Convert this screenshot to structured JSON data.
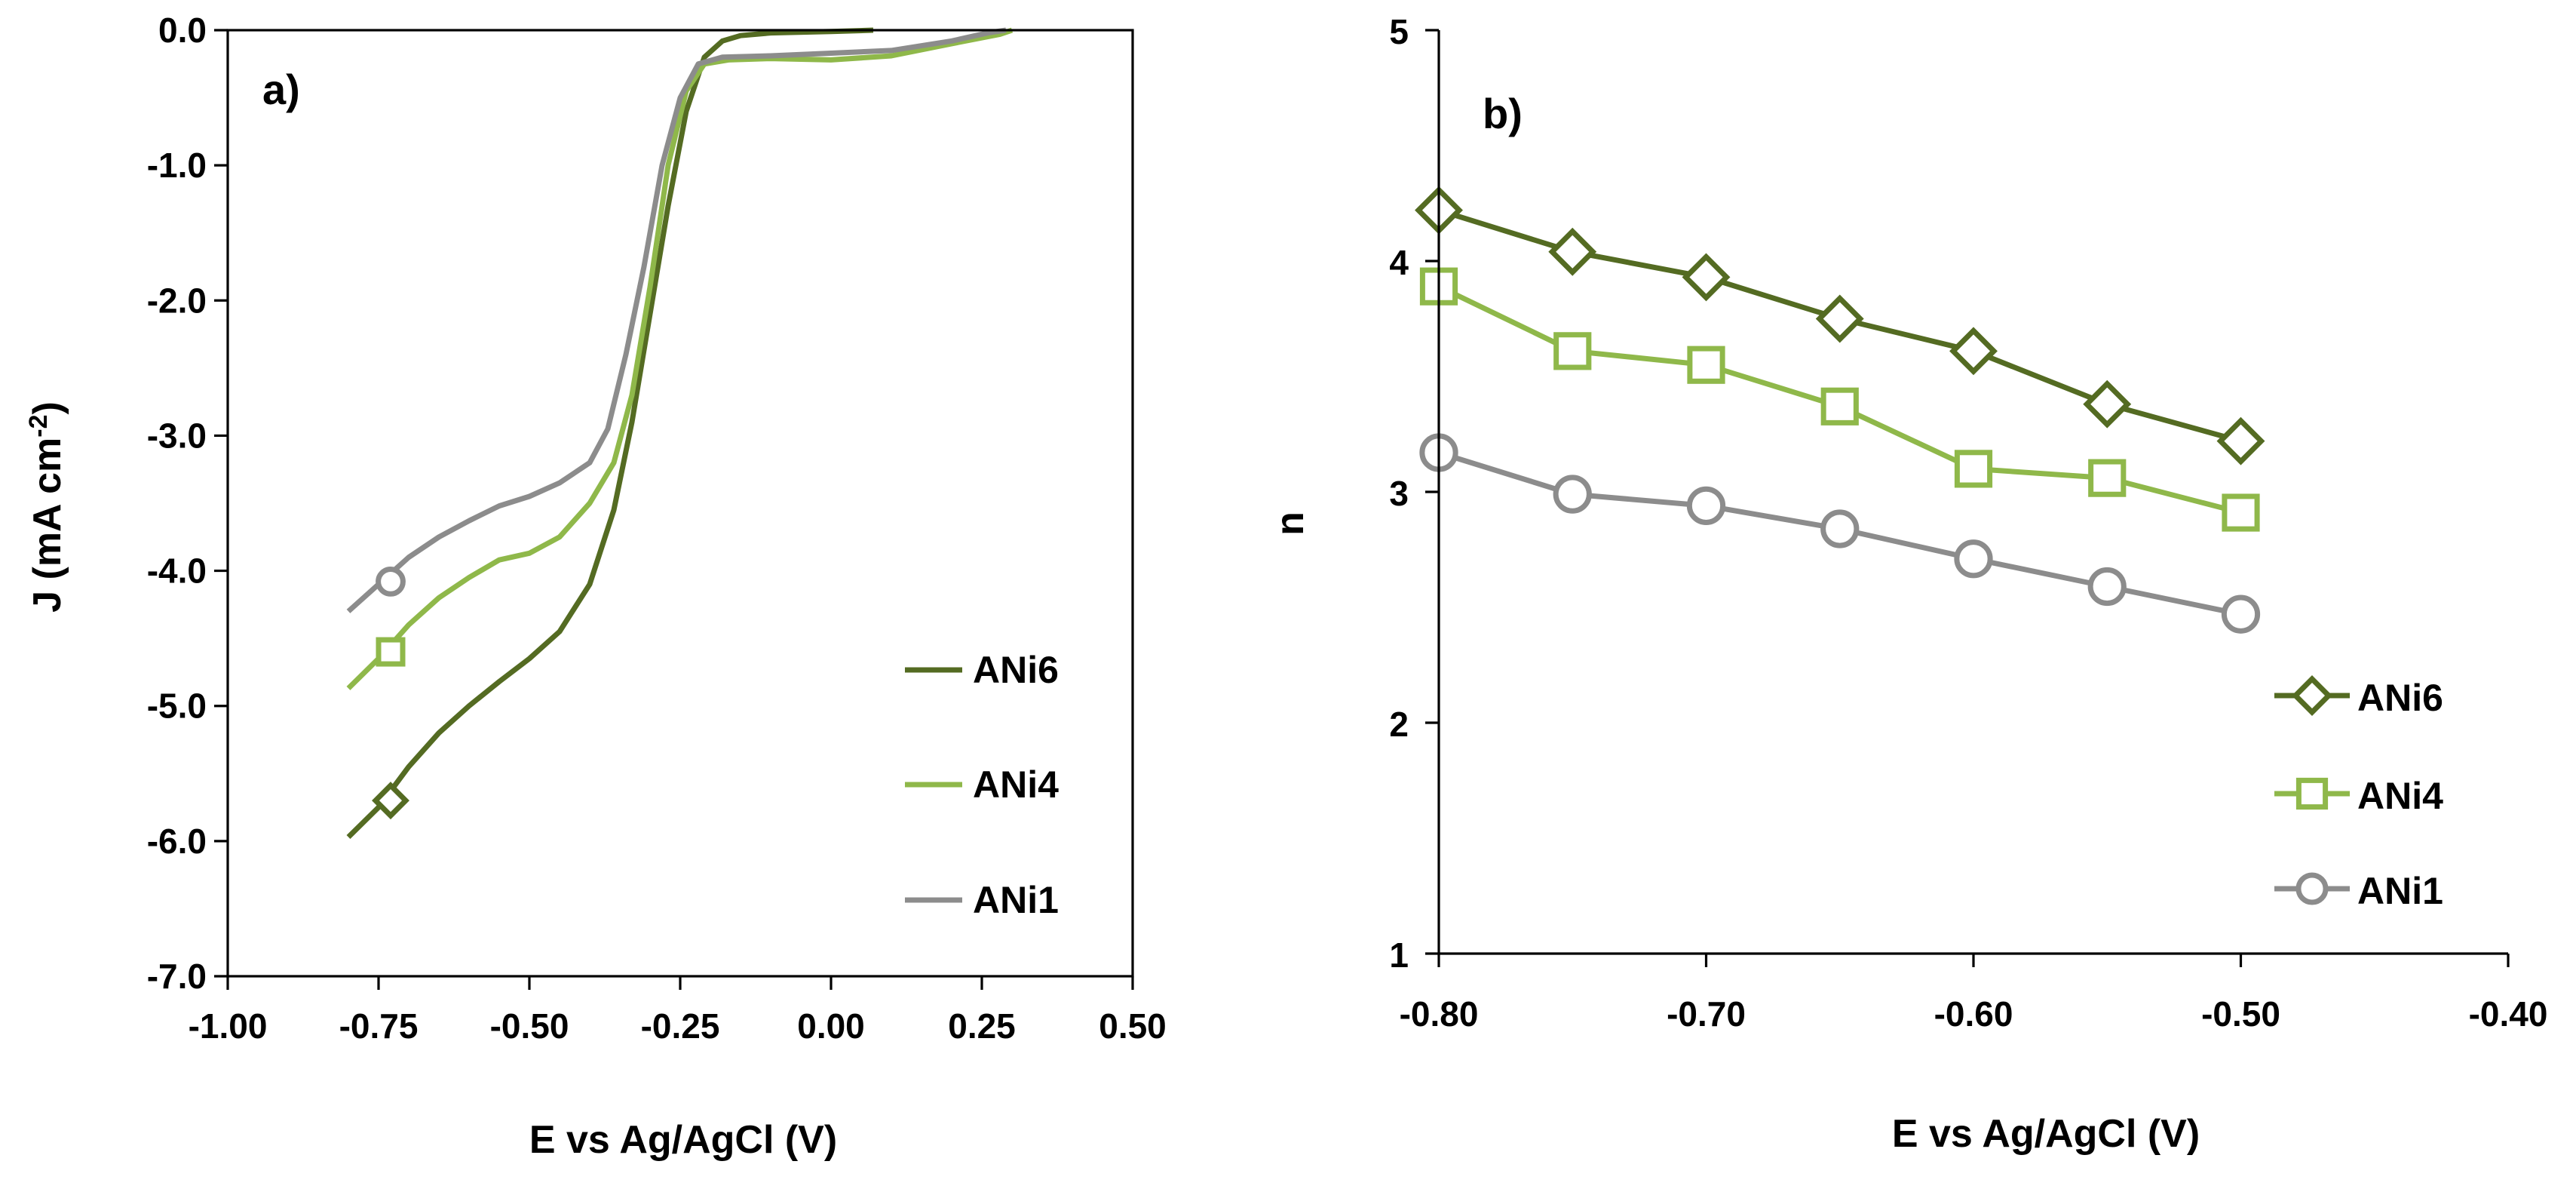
{
  "chart_data": [
    {
      "type": "line",
      "panel_label": "a)",
      "xlabel": "E vs Ag/AgCl (V)",
      "ylabel_main": "J (mA cm",
      "ylabel_sup": "-2",
      "ylabel_close": ")",
      "xlim": [
        -1.0,
        0.5
      ],
      "ylim": [
        -7.0,
        0.0
      ],
      "xticks": [
        -1.0,
        -0.75,
        -0.5,
        -0.25,
        0.0,
        0.25,
        0.5
      ],
      "xtick_labels": [
        "-1.00",
        "-0.75",
        "-0.50",
        "-0.25",
        "0.00",
        "0.25",
        "0.50"
      ],
      "yticks": [
        0,
        -1,
        -2,
        -3,
        -4,
        -5,
        -6,
        -7
      ],
      "ytick_labels": [
        "0.0",
        "-1.0",
        "-2.0",
        "-3.0",
        "-4.0",
        "-5.0",
        "-6.0",
        "-7.0"
      ],
      "legend_position": "right",
      "series": [
        {
          "name": "ANi6",
          "color": "#546b22",
          "marker": "diamond",
          "marker_at": [
            -0.73,
            -5.7
          ],
          "points": [
            [
              -0.8,
              -5.97
            ],
            [
              -0.75,
              -5.75
            ],
            [
              -0.7,
              -5.45
            ],
            [
              -0.65,
              -5.2
            ],
            [
              -0.6,
              -5.0
            ],
            [
              -0.55,
              -4.82
            ],
            [
              -0.5,
              -4.65
            ],
            [
              -0.45,
              -4.45
            ],
            [
              -0.4,
              -4.1
            ],
            [
              -0.36,
              -3.55
            ],
            [
              -0.33,
              -2.9
            ],
            [
              -0.3,
              -2.1
            ],
            [
              -0.27,
              -1.3
            ],
            [
              -0.24,
              -0.6
            ],
            [
              -0.21,
              -0.2
            ],
            [
              -0.18,
              -0.08
            ],
            [
              -0.15,
              -0.04
            ],
            [
              -0.1,
              -0.02
            ],
            [
              0.0,
              -0.01
            ],
            [
              0.07,
              0.0
            ]
          ]
        },
        {
          "name": "ANi4",
          "color": "#8fb84a",
          "marker": "square",
          "marker_at": [
            -0.73,
            -4.6
          ],
          "points": [
            [
              -0.8,
              -4.87
            ],
            [
              -0.75,
              -4.65
            ],
            [
              -0.7,
              -4.4
            ],
            [
              -0.65,
              -4.2
            ],
            [
              -0.6,
              -4.05
            ],
            [
              -0.55,
              -3.92
            ],
            [
              -0.5,
              -3.87
            ],
            [
              -0.45,
              -3.75
            ],
            [
              -0.4,
              -3.5
            ],
            [
              -0.36,
              -3.2
            ],
            [
              -0.33,
              -2.7
            ],
            [
              -0.3,
              -1.9
            ],
            [
              -0.27,
              -1.0
            ],
            [
              -0.24,
              -0.45
            ],
            [
              -0.21,
              -0.25
            ],
            [
              -0.17,
              -0.22
            ],
            [
              -0.1,
              -0.21
            ],
            [
              0.0,
              -0.22
            ],
            [
              0.1,
              -0.19
            ],
            [
              0.2,
              -0.1
            ],
            [
              0.28,
              -0.03
            ],
            [
              0.3,
              0.0
            ]
          ]
        },
        {
          "name": "ANi1",
          "color": "#8c8c8c",
          "marker": "circle",
          "marker_at": [
            -0.73,
            -4.08
          ],
          "points": [
            [
              -0.8,
              -4.3
            ],
            [
              -0.75,
              -4.1
            ],
            [
              -0.7,
              -3.9
            ],
            [
              -0.65,
              -3.75
            ],
            [
              -0.6,
              -3.63
            ],
            [
              -0.55,
              -3.52
            ],
            [
              -0.5,
              -3.45
            ],
            [
              -0.45,
              -3.35
            ],
            [
              -0.4,
              -3.2
            ],
            [
              -0.37,
              -2.95
            ],
            [
              -0.34,
              -2.4
            ],
            [
              -0.31,
              -1.75
            ],
            [
              -0.28,
              -1.0
            ],
            [
              -0.25,
              -0.5
            ],
            [
              -0.22,
              -0.25
            ],
            [
              -0.18,
              -0.2
            ],
            [
              -0.1,
              -0.19
            ],
            [
              0.0,
              -0.17
            ],
            [
              0.1,
              -0.15
            ],
            [
              0.2,
              -0.08
            ],
            [
              0.26,
              -0.02
            ],
            [
              0.29,
              0.0
            ]
          ]
        }
      ]
    },
    {
      "type": "line",
      "panel_label": "b)",
      "xlabel": "E vs Ag/AgCl (V)",
      "ylabel": "n",
      "xlim": [
        -0.8,
        -0.4
      ],
      "ylim": [
        1,
        5
      ],
      "xticks": [
        -0.8,
        -0.7,
        -0.6,
        -0.5,
        -0.4
      ],
      "xtick_labels": [
        "-0.80",
        "-0.70",
        "-0.60",
        "-0.50",
        "-0.40"
      ],
      "yticks": [
        1,
        2,
        3,
        4,
        5
      ],
      "ytick_labels": [
        "1",
        "2",
        "3",
        "4",
        "5"
      ],
      "legend_position": "bottom-right",
      "x": [
        -0.8,
        -0.75,
        -0.7,
        -0.65,
        -0.6,
        -0.55,
        -0.5
      ],
      "series": [
        {
          "name": "ANi6",
          "color": "#546b22",
          "marker": "diamond",
          "values": [
            4.22,
            4.04,
            3.93,
            3.75,
            3.61,
            3.38,
            3.22
          ]
        },
        {
          "name": "ANi4",
          "color": "#8fb84a",
          "marker": "square",
          "values": [
            3.89,
            3.61,
            3.55,
            3.37,
            3.1,
            3.06,
            2.91
          ]
        },
        {
          "name": "ANi1",
          "color": "#8c8c8c",
          "marker": "circle",
          "values": [
            3.17,
            2.99,
            2.94,
            2.84,
            2.71,
            2.59,
            2.47
          ]
        }
      ]
    }
  ]
}
